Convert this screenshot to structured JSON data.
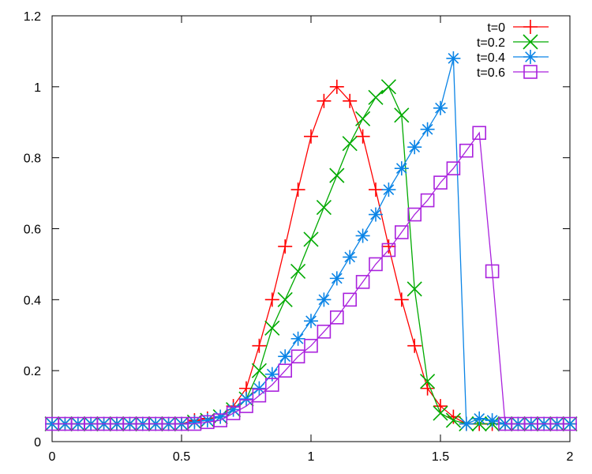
{
  "chart_data": {
    "type": "line",
    "title": "",
    "xlabel": "",
    "ylabel": "",
    "xlim": [
      0,
      2
    ],
    "ylim": [
      0,
      1.2
    ],
    "grid": false,
    "legend_placement": "top-right",
    "x_ticks": [
      0,
      0.5,
      1,
      1.5,
      2
    ],
    "x_tick_labels": [
      "0",
      "0.5",
      "1",
      "1.5",
      "2"
    ],
    "y_ticks": [
      0,
      0.2,
      0.4,
      0.6,
      0.8,
      1,
      1.2
    ],
    "y_tick_labels": [
      "0",
      "0.2",
      "0.4",
      "0.6",
      "0.8",
      "1",
      "1.2"
    ],
    "x": [
      0,
      0.025,
      0.05,
      0.075,
      0.1,
      0.125,
      0.15,
      0.175,
      0.2,
      0.225,
      0.25,
      0.275,
      0.3,
      0.325,
      0.35,
      0.375,
      0.4,
      0.425,
      0.45,
      0.475,
      0.5,
      0.525,
      0.55,
      0.575,
      0.6,
      0.625,
      0.65,
      0.675,
      0.7,
      0.725,
      0.75,
      0.775,
      0.8,
      0.825,
      0.85,
      0.875,
      0.9,
      0.925,
      0.95,
      0.975,
      1,
      1.025,
      1.05,
      1.075,
      1.1,
      1.125,
      1.15,
      1.175,
      1.2,
      1.225,
      1.25,
      1.275,
      1.3,
      1.325,
      1.35,
      1.375,
      1.4,
      1.425,
      1.45,
      1.475,
      1.5,
      1.525,
      1.55,
      1.575,
      1.6,
      1.625,
      1.65,
      1.675,
      1.7,
      1.725,
      1.75,
      1.775,
      1.8,
      1.825,
      1.85,
      1.875,
      1.9,
      1.925,
      1.95,
      1.975,
      2
    ],
    "series": [
      {
        "name": "t=0",
        "color": "#ff0000",
        "marker": "plus",
        "x": [
          0,
          0.05,
          0.1,
          0.15,
          0.2,
          0.25,
          0.3,
          0.35,
          0.4,
          0.45,
          0.5,
          0.55,
          0.6,
          0.65,
          0.7,
          0.75,
          0.8,
          0.85,
          0.9,
          0.95,
          1,
          1.05,
          1.1,
          1.15,
          1.2,
          1.25,
          1.3,
          1.35,
          1.4,
          1.45,
          1.5,
          1.55,
          1.6,
          1.65,
          1.7,
          1.75,
          1.8,
          1.85,
          1.9,
          1.95,
          2
        ],
        "values": [
          0.05,
          0.05,
          0.05,
          0.05,
          0.05,
          0.05,
          0.05,
          0.05,
          0.05,
          0.05,
          0.05,
          0.06,
          0.065,
          0.07,
          0.1,
          0.15,
          0.27,
          0.4,
          0.55,
          0.71,
          0.86,
          0.96,
          1.0,
          0.96,
          0.86,
          0.71,
          0.55,
          0.4,
          0.27,
          0.15,
          0.1,
          0.07,
          0.05,
          0.05,
          0.05,
          0.05,
          0.05,
          0.05,
          0.05,
          0.05,
          0.05
        ]
      },
      {
        "name": "t=0.2",
        "color": "#00aa00",
        "marker": "cross",
        "x": [
          0,
          0.05,
          0.1,
          0.15,
          0.2,
          0.25,
          0.3,
          0.35,
          0.4,
          0.45,
          0.5,
          0.55,
          0.6,
          0.65,
          0.7,
          0.75,
          0.8,
          0.85,
          0.9,
          0.95,
          1,
          1.05,
          1.1,
          1.15,
          1.2,
          1.25,
          1.3,
          1.35,
          1.4,
          1.45,
          1.5,
          1.55,
          1.6,
          1.65,
          1.7,
          1.75,
          1.8,
          1.85,
          1.9,
          1.95,
          2
        ],
        "values": [
          0.05,
          0.05,
          0.05,
          0.05,
          0.05,
          0.05,
          0.05,
          0.05,
          0.05,
          0.05,
          0.05,
          0.055,
          0.06,
          0.07,
          0.09,
          0.12,
          0.2,
          0.32,
          0.4,
          0.48,
          0.57,
          0.66,
          0.75,
          0.84,
          0.91,
          0.97,
          1.0,
          0.92,
          0.43,
          0.17,
          0.08,
          0.06,
          0.05,
          0.05,
          0.05,
          0.05,
          0.05,
          0.05,
          0.05,
          0.05,
          0.05
        ]
      },
      {
        "name": "t=0.4",
        "color": "#0a84e6",
        "marker": "star",
        "x": [
          0,
          0.05,
          0.1,
          0.15,
          0.2,
          0.25,
          0.3,
          0.35,
          0.4,
          0.45,
          0.5,
          0.55,
          0.6,
          0.65,
          0.7,
          0.75,
          0.8,
          0.85,
          0.9,
          0.95,
          1,
          1.05,
          1.1,
          1.15,
          1.2,
          1.25,
          1.3,
          1.35,
          1.4,
          1.45,
          1.5,
          1.55,
          1.6,
          1.65,
          1.7,
          1.75,
          1.8,
          1.85,
          1.9,
          1.95,
          2
        ],
        "values": [
          0.05,
          0.05,
          0.05,
          0.05,
          0.05,
          0.05,
          0.05,
          0.05,
          0.05,
          0.05,
          0.05,
          0.055,
          0.06,
          0.07,
          0.09,
          0.12,
          0.15,
          0.19,
          0.24,
          0.29,
          0.34,
          0.4,
          0.46,
          0.52,
          0.58,
          0.64,
          0.71,
          0.77,
          0.83,
          0.88,
          0.94,
          1.08,
          0.05,
          0.065,
          0.06,
          0.05,
          0.05,
          0.05,
          0.05,
          0.05,
          0.05
        ]
      },
      {
        "name": "t=0.6",
        "color": "#aa22dd",
        "marker": "square",
        "x": [
          0,
          0.05,
          0.1,
          0.15,
          0.2,
          0.25,
          0.3,
          0.35,
          0.4,
          0.45,
          0.5,
          0.55,
          0.6,
          0.65,
          0.7,
          0.75,
          0.8,
          0.85,
          0.9,
          0.95,
          1,
          1.05,
          1.1,
          1.15,
          1.2,
          1.25,
          1.3,
          1.35,
          1.4,
          1.45,
          1.5,
          1.55,
          1.6,
          1.65,
          1.7,
          1.75,
          1.8,
          1.85,
          1.9,
          1.95,
          2
        ],
        "values": [
          0.05,
          0.05,
          0.05,
          0.05,
          0.05,
          0.05,
          0.05,
          0.05,
          0.05,
          0.05,
          0.05,
          0.05,
          0.055,
          0.06,
          0.08,
          0.1,
          0.13,
          0.16,
          0.2,
          0.24,
          0.27,
          0.31,
          0.35,
          0.4,
          0.45,
          0.5,
          0.54,
          0.59,
          0.64,
          0.68,
          0.73,
          0.77,
          0.82,
          0.87,
          0.48,
          0.05,
          0.05,
          0.05,
          0.05,
          0.05,
          0.05
        ]
      }
    ]
  }
}
